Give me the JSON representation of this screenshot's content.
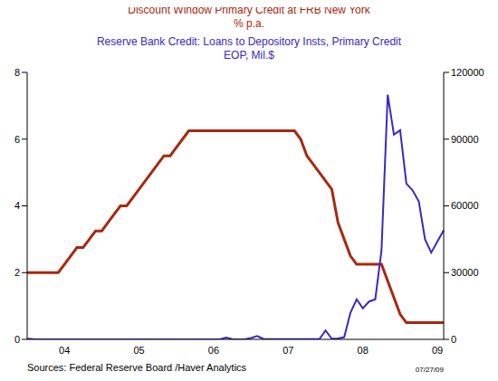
{
  "chart_data": {
    "type": "line",
    "categories": [
      null,
      null,
      null,
      null,
      null,
      null,
      "04",
      null,
      null,
      null,
      null,
      null,
      null,
      null,
      null,
      null,
      null,
      null,
      "05",
      null,
      null,
      null,
      null,
      null,
      null,
      null,
      null,
      null,
      null,
      null,
      "06",
      null,
      null,
      null,
      null,
      null,
      null,
      null,
      null,
      null,
      null,
      null,
      "07",
      null,
      null,
      null,
      null,
      null,
      null,
      null,
      null,
      null,
      null,
      null,
      "08",
      null,
      null,
      null,
      null,
      null,
      null,
      null,
      null,
      null,
      null,
      null,
      "09",
      null
    ],
    "ylim": [
      0,
      8
    ],
    "yticks": [
      0,
      2,
      4,
      6,
      8
    ],
    "y2lim": [
      0,
      120000
    ],
    "y2ticks": [
      0,
      30000,
      60000,
      90000,
      120000
    ],
    "series": [
      {
        "name": "Discount Window Primary Credit at FRB New York",
        "unit": "% p.a.",
        "color": "#a8280f",
        "values": [
          2,
          2,
          2,
          2,
          2,
          2,
          2.25,
          2.5,
          2.75,
          2.75,
          3,
          3.25,
          3.25,
          3.5,
          3.75,
          4,
          4,
          4.25,
          4.5,
          4.75,
          5,
          5.25,
          5.5,
          5.5,
          5.75,
          6,
          6.25,
          6.25,
          6.25,
          6.25,
          6.25,
          6.25,
          6.25,
          6.25,
          6.25,
          6.25,
          6.25,
          6.25,
          6.25,
          6.25,
          6.25,
          6.25,
          6.25,
          6.25,
          6,
          5.5,
          5.25,
          5,
          4.75,
          4.5,
          3.5,
          3,
          2.5,
          2.25,
          2.25,
          2.25,
          2.25,
          2.25,
          1.75,
          1.25,
          0.75,
          0.5,
          0.5,
          0.5,
          0.5,
          0.5,
          0.5,
          0.5
        ]
      },
      {
        "name": "Reserve Bank Credit: Loans to Depository Insts, Primary Credit",
        "unit": "EOP, Mil.$",
        "color": "#3b28c6",
        "axis": "y2",
        "values": [
          300,
          100,
          50,
          50,
          50,
          50,
          50,
          50,
          50,
          50,
          50,
          50,
          50,
          50,
          50,
          50,
          50,
          50,
          50,
          50,
          50,
          50,
          50,
          50,
          50,
          50,
          50,
          50,
          50,
          50,
          50,
          50,
          800,
          100,
          50,
          50,
          600,
          1500,
          200,
          100,
          100,
          100,
          100,
          100,
          100,
          100,
          100,
          100,
          4000,
          300,
          400,
          1000,
          12000,
          18000,
          14000,
          17000,
          18000,
          40000,
          110000,
          92000,
          94000,
          70000,
          67000,
          62000,
          45000,
          39000,
          44000,
          49000
        ]
      }
    ],
    "source": "Sources: Federal Reserve Board /Haver Analytics",
    "date": "07/27/09"
  }
}
